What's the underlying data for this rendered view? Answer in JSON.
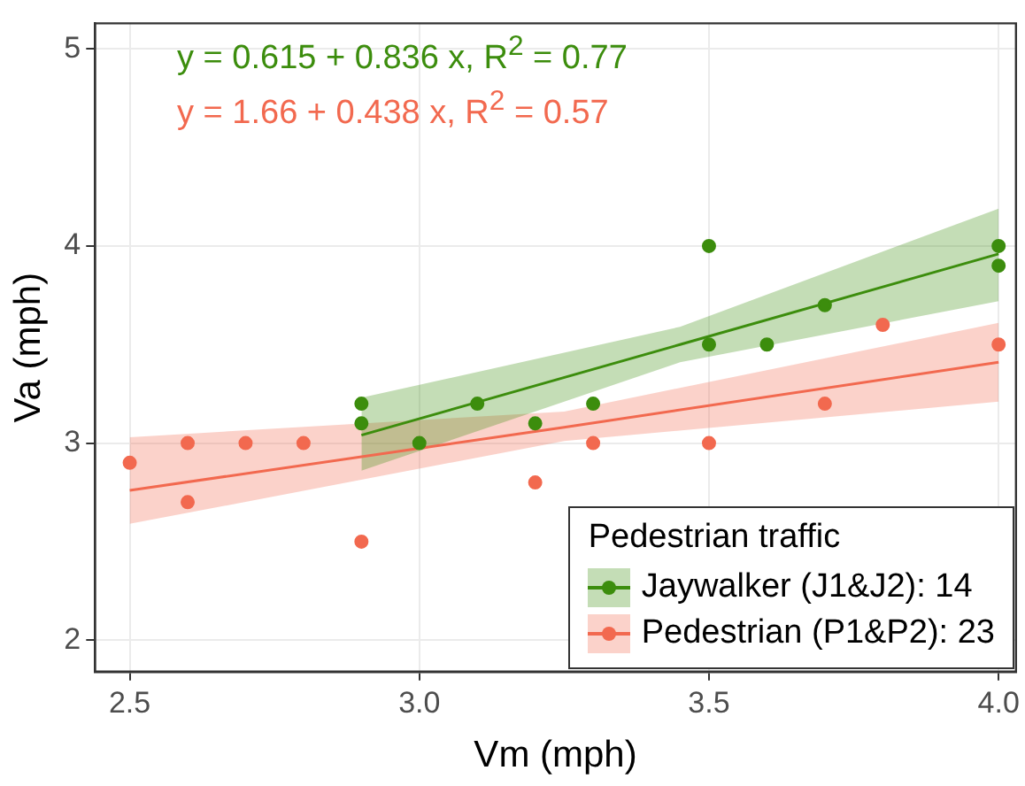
{
  "chart_data": {
    "type": "scatter",
    "xlabel": "Vm (mph)",
    "ylabel": "Va (mph)",
    "legend_title": "Pedestrian traffic",
    "annotations": [
      "y = 0.615 + 0.836 x, R$^{2}$ = 0.77",
      "y = 1.66 + 0.438 x, R$^{2}$ = 0.57"
    ],
    "xlim": [
      2.44,
      4.03
    ],
    "xticks": [
      2.5,
      {
        "value": 3,
        "label": "3.0"
      },
      3.5,
      {
        "value": 4,
        "label": "4.0"
      }
    ],
    "ylim": [
      1.84,
      5.13
    ],
    "yticks": [
      2,
      3,
      4,
      5
    ],
    "grid": true,
    "legend": "bottom right",
    "marker": "circle",
    "series": [
      {
        "name": "Jaywalker (J1&J2): 14",
        "color": "#3c8d0d",
        "x": [
          2.9,
          2.9,
          3.0,
          3.1,
          3.2,
          3.3,
          3.5,
          3.5,
          3.6,
          3.7,
          4.0,
          4.0
        ],
        "values": [
          3.2,
          3.1,
          3.0,
          3.2,
          3.1,
          3.2,
          4.0,
          3.5,
          3.5,
          3.7,
          4.0,
          3.9
        ]
      },
      {
        "name": "Pedestrian (P1&P2): 23",
        "color": "#f2694f",
        "x": [
          2.5,
          2.6,
          2.6,
          2.7,
          2.8,
          2.9,
          3.2,
          3.3,
          3.5,
          3.7,
          3.8,
          4.0
        ],
        "values": [
          2.9,
          3.0,
          2.7,
          3.0,
          3.0,
          2.5,
          2.8,
          3.0,
          3.0,
          3.2,
          3.6,
          3.5
        ]
      },
      {
        "type": "line",
        "marker": "none",
        "color": "#3c8d0d",
        "x": [
          2.9,
          3.45,
          4.0
        ],
        "values": [
          3.04,
          3.5,
          3.96
        ],
        "lower": [
          2.86,
          3.41,
          3.72
        ],
        "upper": [
          3.23,
          3.59,
          4.19
        ]
      },
      {
        "type": "line",
        "marker": "none",
        "color": "#f2694f",
        "x": [
          2.5,
          3.25,
          4.0
        ],
        "values": [
          2.76,
          3.08,
          3.41
        ],
        "lower": [
          2.59,
          3.01,
          3.21
        ],
        "upper": [
          3.03,
          3.16,
          3.61
        ]
      }
    ]
  }
}
